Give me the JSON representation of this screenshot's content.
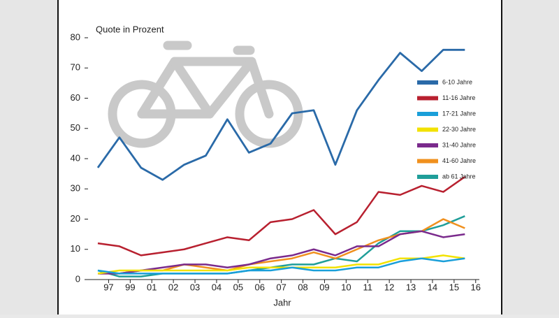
{
  "chart_data": {
    "type": "line",
    "title": "Quote in Prozent",
    "x_label": "Jahr",
    "categories": [
      "97",
      "99",
      "01",
      "02",
      "03",
      "04",
      "05",
      "06",
      "07",
      "08",
      "09",
      "10",
      "11",
      "12",
      "13",
      "14",
      "15",
      "16"
    ],
    "ylim": [
      0,
      80
    ],
    "yticks": [
      0,
      10,
      20,
      30,
      40,
      50,
      60,
      70,
      80
    ],
    "series": [
      {
        "name": "6-10 Jahre",
        "color": "#2a6aa8",
        "values": [
          37,
          47,
          37,
          33,
          38,
          41,
          53,
          42,
          45,
          55,
          56,
          38,
          56,
          66,
          75,
          69,
          76,
          76
        ]
      },
      {
        "name": "11-16 Jahre",
        "color": "#b8202f",
        "values": [
          12,
          11,
          8,
          9,
          10,
          12,
          14,
          13,
          19,
          20,
          23,
          15,
          19,
          29,
          28,
          31,
          29,
          34
        ]
      },
      {
        "name": "17-21 Jahre",
        "color": "#1a9fd9",
        "values": [
          3,
          2,
          2,
          2,
          2,
          2,
          2,
          3,
          3,
          4,
          3,
          3,
          4,
          4,
          6,
          7,
          6,
          7
        ]
      },
      {
        "name": "22-30 Jahre",
        "color": "#f2e200",
        "values": [
          2,
          3,
          3,
          3,
          3,
          3,
          3,
          4,
          4,
          4,
          4,
          4,
          5,
          5,
          7,
          7,
          8,
          7
        ]
      },
      {
        "name": "31-40 Jahre",
        "color": "#7a2a8c",
        "values": [
          2,
          2,
          3,
          4,
          5,
          5,
          4,
          5,
          7,
          8,
          10,
          8,
          11,
          11,
          15,
          16,
          14,
          15
        ]
      },
      {
        "name": "41-60 Jahre",
        "color": "#f0901e",
        "values": [
          2,
          2,
          3,
          3,
          5,
          4,
          3,
          5,
          6,
          7,
          9,
          7,
          10,
          13,
          15,
          16,
          20,
          17
        ]
      },
      {
        "name": "ab 61 Jahre",
        "color": "#1f9e99",
        "values": [
          3,
          1,
          1,
          2,
          2,
          2,
          2,
          3,
          4,
          5,
          5,
          7,
          6,
          12,
          16,
          16,
          18,
          21
        ]
      }
    ]
  }
}
